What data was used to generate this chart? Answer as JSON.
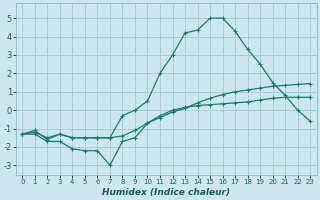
{
  "xlabel": "Humidex (Indice chaleur)",
  "bg_color": "#cce8ec",
  "grid_color": "#aacdd3",
  "line_color": "#1a7a6e",
  "xlim": [
    -0.5,
    23.5
  ],
  "ylim": [
    -3.5,
    5.8
  ],
  "xticks": [
    0,
    1,
    2,
    3,
    4,
    5,
    6,
    7,
    8,
    9,
    10,
    11,
    12,
    13,
    14,
    15,
    16,
    17,
    18,
    19,
    20,
    21,
    22,
    23
  ],
  "yticks": [
    -3,
    -2,
    -1,
    0,
    1,
    2,
    3,
    4,
    5
  ],
  "line1_x": [
    0,
    1,
    2,
    3,
    4,
    5,
    6,
    7,
    8,
    9,
    10,
    11,
    12,
    13,
    14,
    15,
    16,
    17,
    18,
    19,
    20,
    21,
    22,
    23
  ],
  "line1_y": [
    -1.3,
    -1.3,
    -1.7,
    -1.7,
    -2.1,
    -2.2,
    -2.2,
    -3.0,
    -1.7,
    -1.5,
    -0.7,
    -0.3,
    0.0,
    0.15,
    0.25,
    0.3,
    0.35,
    0.4,
    0.45,
    0.55,
    0.65,
    0.7,
    0.7,
    0.7
  ],
  "line2_x": [
    0,
    1,
    2,
    3,
    4,
    5,
    6,
    7,
    8,
    9,
    10,
    11,
    12,
    13,
    14,
    15,
    16,
    17,
    18,
    19,
    20,
    21,
    22,
    23
  ],
  "line2_y": [
    -1.3,
    -1.2,
    -1.5,
    -1.3,
    -1.5,
    -1.5,
    -1.5,
    -1.5,
    -1.4,
    -1.1,
    -0.7,
    -0.4,
    -0.1,
    0.1,
    0.4,
    0.65,
    0.85,
    1.0,
    1.1,
    1.2,
    1.3,
    1.35,
    1.4,
    1.45
  ],
  "line3_x": [
    0,
    1,
    2,
    3,
    4,
    5,
    6,
    7,
    8,
    9,
    10,
    11,
    12,
    13,
    14,
    15,
    16,
    17,
    18,
    19,
    20,
    21,
    22,
    23
  ],
  "line3_y": [
    -1.3,
    -1.1,
    -1.6,
    -1.3,
    -1.5,
    -1.5,
    -1.5,
    -1.5,
    -0.3,
    0.0,
    0.5,
    2.0,
    3.0,
    4.2,
    4.35,
    5.0,
    5.0,
    4.3,
    3.3,
    2.5,
    1.5,
    0.8,
    0.0,
    -0.6
  ]
}
